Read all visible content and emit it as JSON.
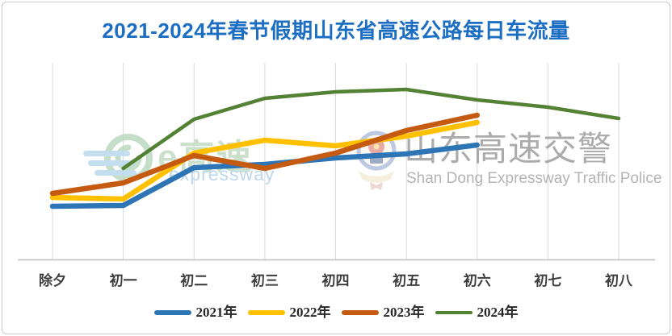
{
  "title": {
    "text": "2021-2024年春节假期山东省高速公路每日车流量",
    "color": "#1c6ec3"
  },
  "watermarks": {
    "egaosu": {
      "logo_icon": "e-expressway-logo-icon",
      "text": "e高速",
      "sub_text": "expressway",
      "logo_green": "#bcd9c0",
      "logo_blue": "#b9d9ec"
    },
    "police": {
      "badge_icon": "police-badge-icon",
      "cn_text": "山东高速交警",
      "en_text": "Shan Dong Expressway Traffic Police",
      "text_gray": "#9d9d9d"
    }
  },
  "chart_data": {
    "type": "line",
    "title": "2021-2024年春节假期山东省高速公路每日车流量",
    "categories": [
      "除夕",
      "初一",
      "初二",
      "初三",
      "初四",
      "初五",
      "初六",
      "初七",
      "初八"
    ],
    "series": [
      {
        "name": "2021年",
        "color": "#2e75b6",
        "stroke_width": 6.5,
        "values": [
          66,
          67,
          114,
          118,
          126,
          131,
          142,
          null,
          null
        ]
      },
      {
        "name": "2022年",
        "color": "#ffc000",
        "stroke_width": 6.5,
        "values": [
          77,
          75,
          132,
          148,
          141,
          153,
          170,
          null,
          null
        ]
      },
      {
        "name": "2023年",
        "color": "#c55a11",
        "stroke_width": 6.5,
        "values": [
          82,
          95,
          129,
          113,
          132,
          160,
          179,
          null,
          null
        ]
      },
      {
        "name": "2024年",
        "color": "#548235",
        "stroke_width": 4.5,
        "values": [
          null,
          113,
          174,
          200,
          208,
          211,
          198,
          189,
          175
        ]
      }
    ],
    "xlabel": "",
    "ylabel": "",
    "y_axis_visible": false,
    "value_units": "relative units estimated from pixel height above x-axis (source chart displays no y-axis scale)",
    "grid": "vertical-only",
    "legend_position": "bottom"
  },
  "layout_colors": {
    "gridline": "#d9d9d9",
    "axis_line": "#bfbfbf"
  }
}
